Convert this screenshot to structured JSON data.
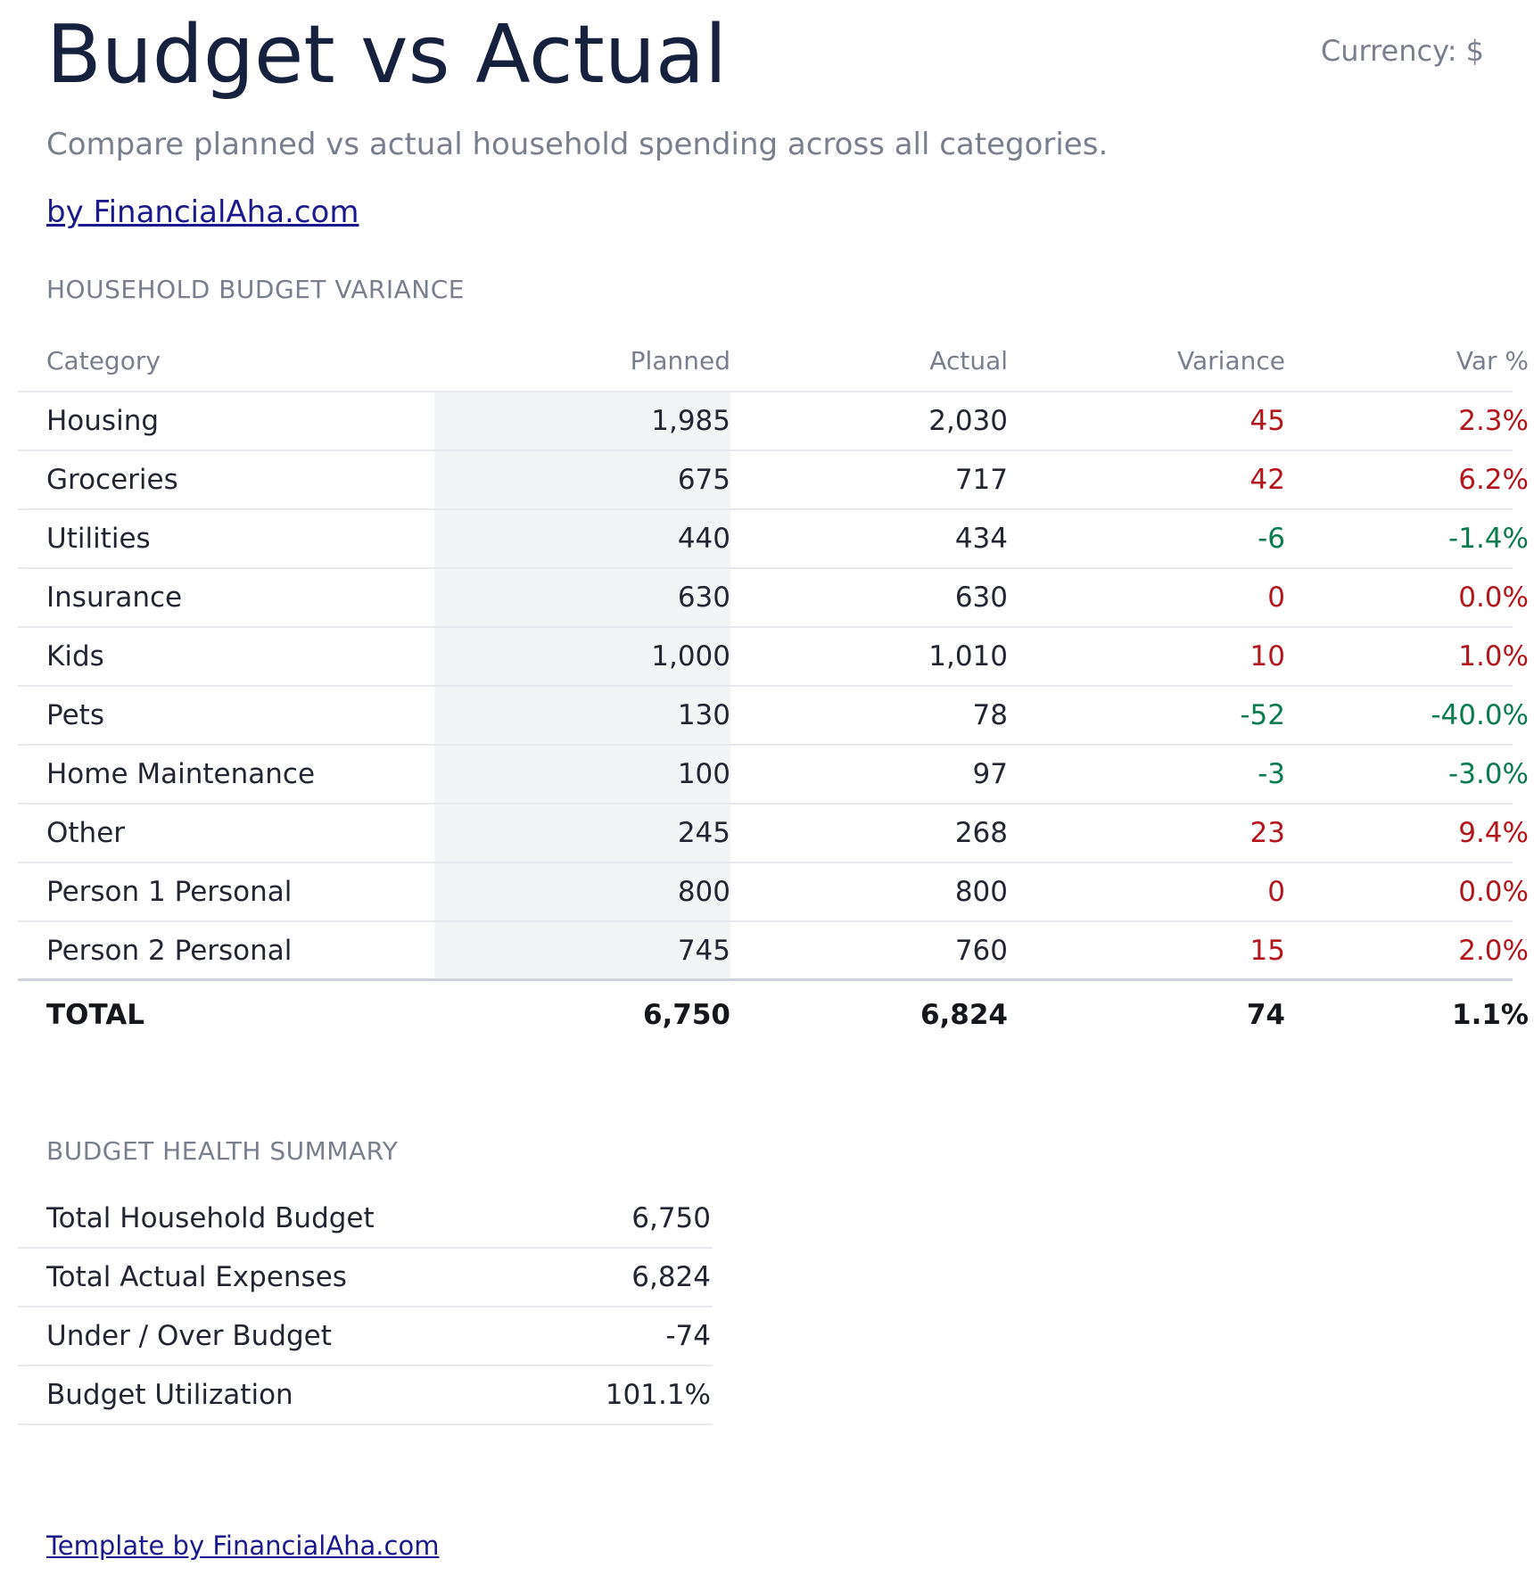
{
  "header": {
    "title": "Budget vs Actual",
    "currency": "Currency: $",
    "subtitle": "Compare planned vs actual household spending across all categories.",
    "brand_link": "by FinancialAha.com"
  },
  "variance": {
    "section_label": "HOUSEHOLD BUDGET VARIANCE",
    "columns": {
      "category": "Category",
      "planned": "Planned",
      "actual": "Actual",
      "variance": "Variance",
      "var_pct": "Var %"
    },
    "rows": [
      {
        "category": "Housing",
        "planned": "1,985",
        "actual": "2,030",
        "variance": "45",
        "var_pct": "2.3%",
        "status": "over"
      },
      {
        "category": "Groceries",
        "planned": "675",
        "actual": "717",
        "variance": "42",
        "var_pct": "6.2%",
        "status": "over"
      },
      {
        "category": "Utilities",
        "planned": "440",
        "actual": "434",
        "variance": "-6",
        "var_pct": "-1.4%",
        "status": "under"
      },
      {
        "category": "Insurance",
        "planned": "630",
        "actual": "630",
        "variance": "0",
        "var_pct": "0.0%",
        "status": "over"
      },
      {
        "category": "Kids",
        "planned": "1,000",
        "actual": "1,010",
        "variance": "10",
        "var_pct": "1.0%",
        "status": "over"
      },
      {
        "category": "Pets",
        "planned": "130",
        "actual": "78",
        "variance": "-52",
        "var_pct": "-40.0%",
        "status": "under"
      },
      {
        "category": "Home Maintenance",
        "planned": "100",
        "actual": "97",
        "variance": "-3",
        "var_pct": "-3.0%",
        "status": "under"
      },
      {
        "category": "Other",
        "planned": "245",
        "actual": "268",
        "variance": "23",
        "var_pct": "9.4%",
        "status": "over"
      },
      {
        "category": "Person 1 Personal",
        "planned": "800",
        "actual": "800",
        "variance": "0",
        "var_pct": "0.0%",
        "status": "over"
      },
      {
        "category": "Person 2 Personal",
        "planned": "745",
        "actual": "760",
        "variance": "15",
        "var_pct": "2.0%",
        "status": "over"
      }
    ],
    "total": {
      "label": "TOTAL",
      "planned": "6,750",
      "actual": "6,824",
      "variance": "74",
      "var_pct": "1.1%"
    }
  },
  "summary": {
    "section_label": "BUDGET HEALTH SUMMARY",
    "rows": [
      {
        "label": "Total Household Budget",
        "value": "6,750"
      },
      {
        "label": "Total Actual Expenses",
        "value": "6,824"
      },
      {
        "label": "Under / Over Budget",
        "value": "-74"
      },
      {
        "label": "Budget Utilization",
        "value": "101.1%"
      }
    ]
  },
  "footer": {
    "link": "Template by FinancialAha.com"
  },
  "colors": {
    "title": "#16213d",
    "muted": "#7a7f8e",
    "link": "#1b1a8c",
    "over_budget": "#b3151d",
    "under_budget": "#0a7a4f",
    "planned_column_bg": "#f3f4f6"
  }
}
